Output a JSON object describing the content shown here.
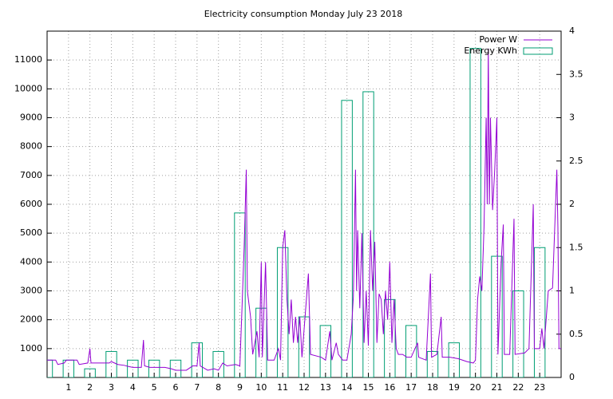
{
  "chart_data": {
    "type": "line",
    "title": "Electricity consumption Monday July 23 2018",
    "xlim": [
      0,
      24
    ],
    "xticks": [
      1,
      2,
      3,
      4,
      5,
      6,
      7,
      8,
      9,
      10,
      11,
      12,
      13,
      14,
      15,
      16,
      17,
      18,
      19,
      20,
      21,
      22,
      23
    ],
    "ylim": [
      0,
      12000
    ],
    "yticks": [
      1000,
      2000,
      3000,
      4000,
      5000,
      6000,
      7000,
      8000,
      9000,
      10000,
      11000
    ],
    "y2lim": [
      0,
      4
    ],
    "y2ticks": [
      0,
      0.5,
      1,
      1.5,
      2,
      2.5,
      3,
      3.5,
      4
    ],
    "grid": true,
    "legend": "top-right",
    "series": [
      {
        "name": "Energy KWh",
        "color": "#009e73",
        "axis": "y2",
        "style": "boxes",
        "x": [
          0,
          1,
          2,
          3,
          4,
          5,
          6,
          7,
          8,
          9,
          10,
          11,
          12,
          13,
          14,
          15,
          16,
          17,
          18,
          19,
          20,
          21,
          22,
          23
        ],
        "values": [
          0.2,
          0.2,
          0.1,
          0.3,
          0.2,
          0.2,
          0.2,
          0.4,
          0.3,
          1.9,
          0.8,
          1.5,
          0.7,
          0.6,
          3.2,
          3.3,
          0.9,
          0.6,
          0.3,
          0.4,
          3.8,
          1.4,
          1.0,
          1.5
        ]
      },
      {
        "name": "Power W",
        "color": "#9400d3",
        "axis": "y",
        "style": "lines",
        "x": [
          0,
          0.4,
          0.5,
          0.8,
          0.9,
          1.4,
          1.5,
          1.9,
          2.0,
          2.05,
          2.9,
          3.0,
          3.3,
          3.6,
          3.8,
          4.0,
          4.4,
          4.5,
          4.55,
          4.8,
          5.5,
          5.8,
          6.0,
          6.5,
          6.8,
          7.0,
          7.1,
          7.15,
          7.5,
          7.8,
          8.0,
          8.2,
          8.4,
          8.8,
          9.0,
          9.1,
          9.2,
          9.3,
          9.35,
          9.5,
          9.6,
          9.8,
          9.9,
          10.0,
          10.05,
          10.2,
          10.3,
          10.6,
          10.8,
          10.9,
          11.0,
          11.1,
          11.2,
          11.3,
          11.4,
          11.5,
          11.6,
          11.7,
          11.8,
          11.9,
          12.2,
          12.3,
          12.8,
          13.0,
          13.2,
          13.3,
          13.5,
          13.6,
          13.8,
          14.0,
          14.2,
          14.3,
          14.4,
          14.45,
          14.5,
          14.6,
          14.7,
          14.8,
          14.9,
          15.0,
          15.1,
          15.2,
          15.3,
          15.4,
          15.5,
          15.6,
          15.7,
          15.8,
          15.9,
          16.0,
          16.1,
          16.2,
          16.3,
          16.4,
          16.6,
          16.8,
          17.0,
          17.3,
          17.35,
          17.7,
          17.9,
          17.95,
          18.2,
          18.4,
          18.45,
          18.8,
          19.2,
          19.6,
          19.9,
          20.0,
          20.1,
          20.2,
          20.3,
          20.4,
          20.5,
          20.55,
          20.6,
          20.65,
          20.7,
          20.8,
          20.9,
          21.0,
          21.05,
          21.2,
          21.3,
          21.35,
          21.6,
          21.8,
          21.85,
          22.3,
          22.5,
          22.7,
          22.75,
          23.0,
          23.1,
          23.2,
          23.4,
          23.6,
          23.8,
          23.85,
          23.9,
          24
        ],
        "values": [
          600,
          600,
          450,
          500,
          600,
          600,
          450,
          500,
          1000,
          500,
          500,
          550,
          450,
          420,
          380,
          350,
          350,
          1300,
          400,
          350,
          350,
          300,
          250,
          250,
          400,
          400,
          1200,
          400,
          250,
          300,
          250,
          500,
          400,
          450,
          400,
          2400,
          4500,
          7200,
          3000,
          2100,
          800,
          1600,
          700,
          4000,
          700,
          4000,
          600,
          600,
          1000,
          600,
          4500,
          5100,
          2700,
          1500,
          2700,
          1200,
          2100,
          1200,
          2100,
          700,
          3600,
          800,
          700,
          600,
          1600,
          600,
          1200,
          800,
          600,
          600,
          1500,
          2800,
          7200,
          3000,
          5100,
          2400,
          5000,
          1200,
          3000,
          1100,
          5100,
          3000,
          4700,
          1200,
          2900,
          2700,
          1500,
          3000,
          2000,
          4000,
          1200,
          2700,
          1000,
          800,
          800,
          700,
          700,
          1200,
          700,
          600,
          3600,
          700,
          800,
          2100,
          700,
          700,
          650,
          550,
          500,
          600,
          2700,
          3500,
          3000,
          5200,
          9000,
          6000,
          11400,
          6000,
          9000,
          5800,
          7200,
          9000,
          800,
          4000,
          5300,
          800,
          800,
          5500,
          800,
          850,
          1000,
          6000,
          1000,
          1000,
          1700,
          1000,
          3000,
          3100,
          7200,
          5200,
          1000,
          1000
        ]
      }
    ]
  }
}
